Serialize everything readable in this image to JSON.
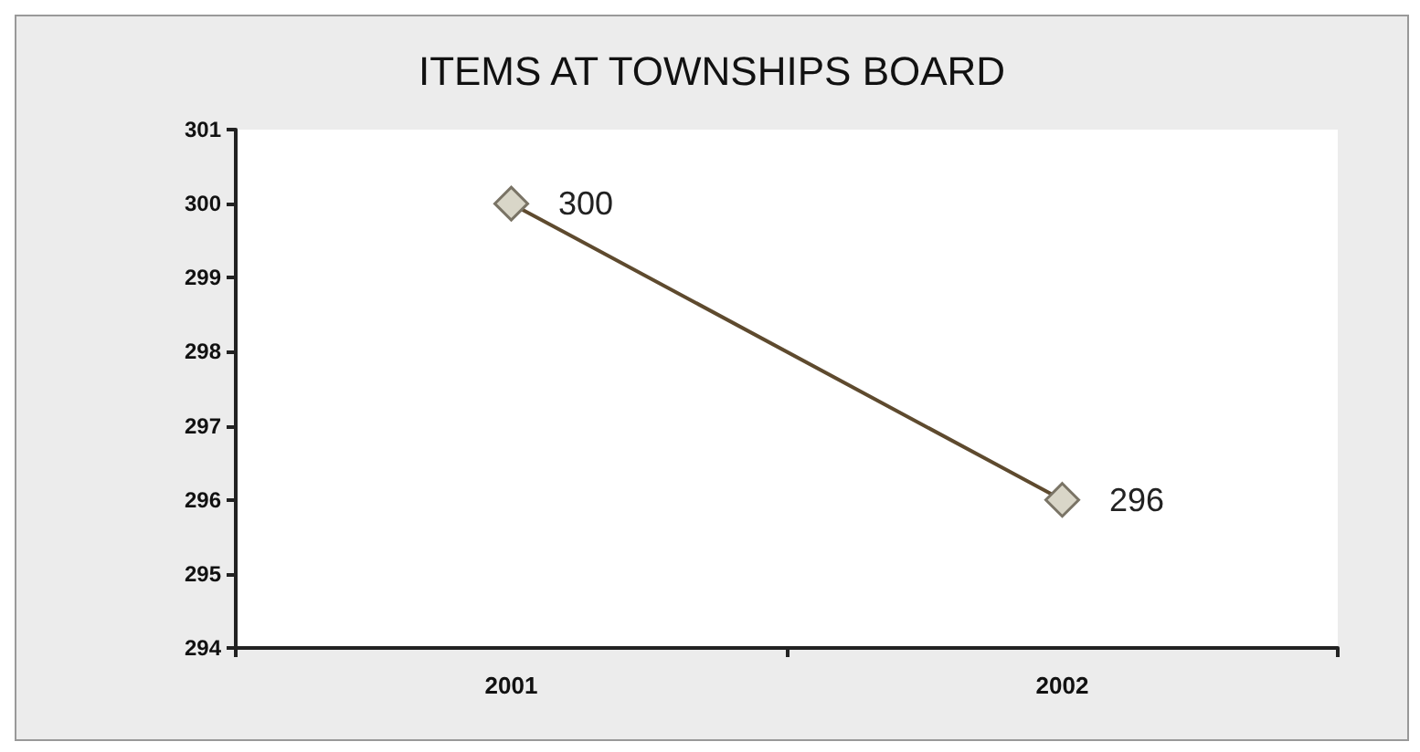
{
  "chart_data": {
    "type": "line",
    "title": "ITEMS AT TOWNSHIPS BOARD",
    "categories": [
      "2001",
      "2002"
    ],
    "series": [
      {
        "color": "#5e4a2e",
        "values": [
          300,
          296
        ]
      }
    ],
    "ylim": [
      294,
      301
    ],
    "yticks": [
      294,
      295,
      296,
      297,
      298,
      299,
      300,
      301
    ],
    "grid": false,
    "marker": "diamond",
    "line_style": "solid",
    "data_labels": true
  }
}
